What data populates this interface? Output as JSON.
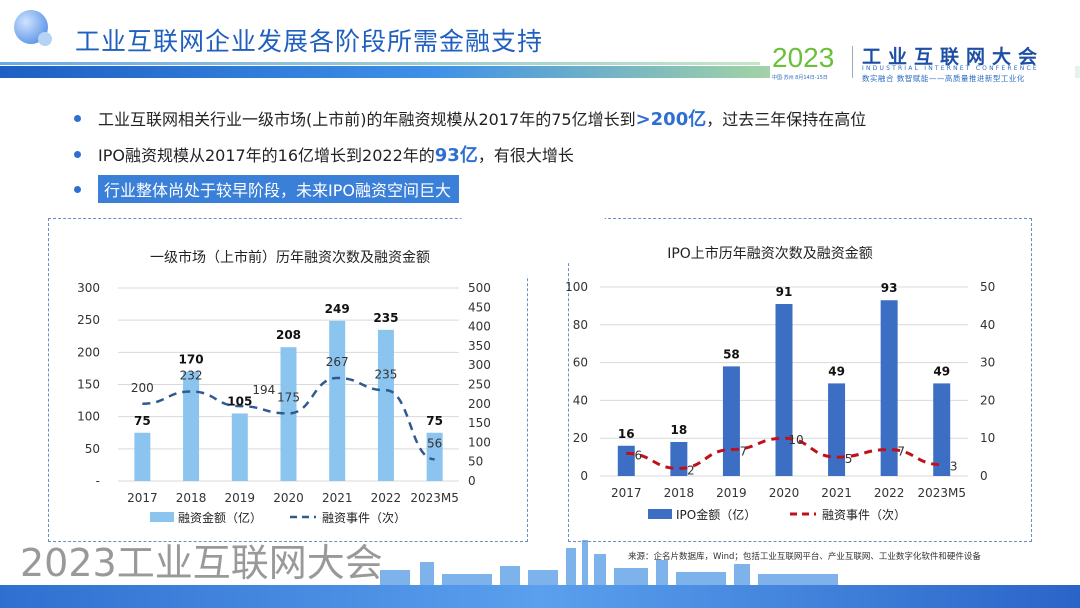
{
  "header": {
    "title": "工业互联网企业发展各阶段所需金融支持",
    "brand": {
      "year": "2023",
      "name": "工业互联网大会",
      "english": "INDUSTRIAL INTERNET CONFERENCE",
      "slogan": "数实融合  数智赋能——高质量推进新型工业化",
      "sub": "中国·苏州  8月14日-15日"
    }
  },
  "bullets": [
    {
      "pre": "工业互联网相关行业一级市场(上市前)的年融资规模从2017年的75亿增长到",
      "em": ">200亿",
      "post": "，过去三年保持在高位"
    },
    {
      "pre": "IPO融资规模从2017年的16亿增长到2022年的",
      "em": "93亿",
      "post": "，有很大增长"
    },
    {
      "pre": "行业整体尚处于较早阶段，未来IPO融资空间巨大",
      "em": "",
      "post": ""
    }
  ],
  "watermark": "2023工业互联网大会",
  "source": "来源：企名片数据库，Wind；包括工业互联网平台、产业互联网、工业数字化软件和硬件设备",
  "chart_data": [
    {
      "type": "bar",
      "title": "一级市场（上市前）历年融资次数及融资金额",
      "categories": [
        "2017",
        "2018",
        "2019",
        "2020",
        "2021",
        "2022",
        "2023M5"
      ],
      "y_left": {
        "range": [
          0,
          300
        ],
        "ticks": [
          "-",
          "50",
          "100",
          "150",
          "200",
          "250",
          "300"
        ]
      },
      "y_right": {
        "range": [
          0,
          500
        ],
        "ticks": [
          "0",
          "50",
          "100",
          "150",
          "200",
          "250",
          "300",
          "350",
          "400",
          "450",
          "500"
        ]
      },
      "grid": true,
      "legend_position": "bottom",
      "series": [
        {
          "name": "融资金额（亿）",
          "type": "bar",
          "axis": "left",
          "color": "#8cc4f0",
          "values": [
            75,
            170,
            105,
            208,
            249,
            235,
            75
          ]
        },
        {
          "name": "融资事件（次）",
          "type": "line",
          "style": "dashed",
          "axis": "right",
          "color": "#2f5a8f",
          "values": [
            200,
            232,
            194,
            175,
            267,
            235,
            56
          ]
        }
      ]
    },
    {
      "type": "bar",
      "title": "IPO上市历年融资次数及融资金额",
      "categories": [
        "2017",
        "2018",
        "2019",
        "2020",
        "2021",
        "2022",
        "2023M5"
      ],
      "y_left": {
        "range": [
          0,
          100
        ],
        "ticks": [
          "0",
          "20",
          "40",
          "60",
          "80",
          "100"
        ]
      },
      "y_right": {
        "range": [
          0,
          50
        ],
        "ticks": [
          "0",
          "10",
          "20",
          "30",
          "40",
          "50"
        ]
      },
      "grid": true,
      "legend_position": "bottom",
      "series": [
        {
          "name": "IPO金额（亿）",
          "type": "bar",
          "axis": "left",
          "color": "#3c6fc4",
          "values": [
            16,
            18,
            58,
            91,
            49,
            93,
            49
          ]
        },
        {
          "name": "融资事件（次）",
          "type": "line",
          "style": "dashed",
          "axis": "right",
          "color": "#c0101a",
          "values": [
            6,
            2,
            7,
            10,
            5,
            7,
            3
          ]
        }
      ]
    }
  ]
}
